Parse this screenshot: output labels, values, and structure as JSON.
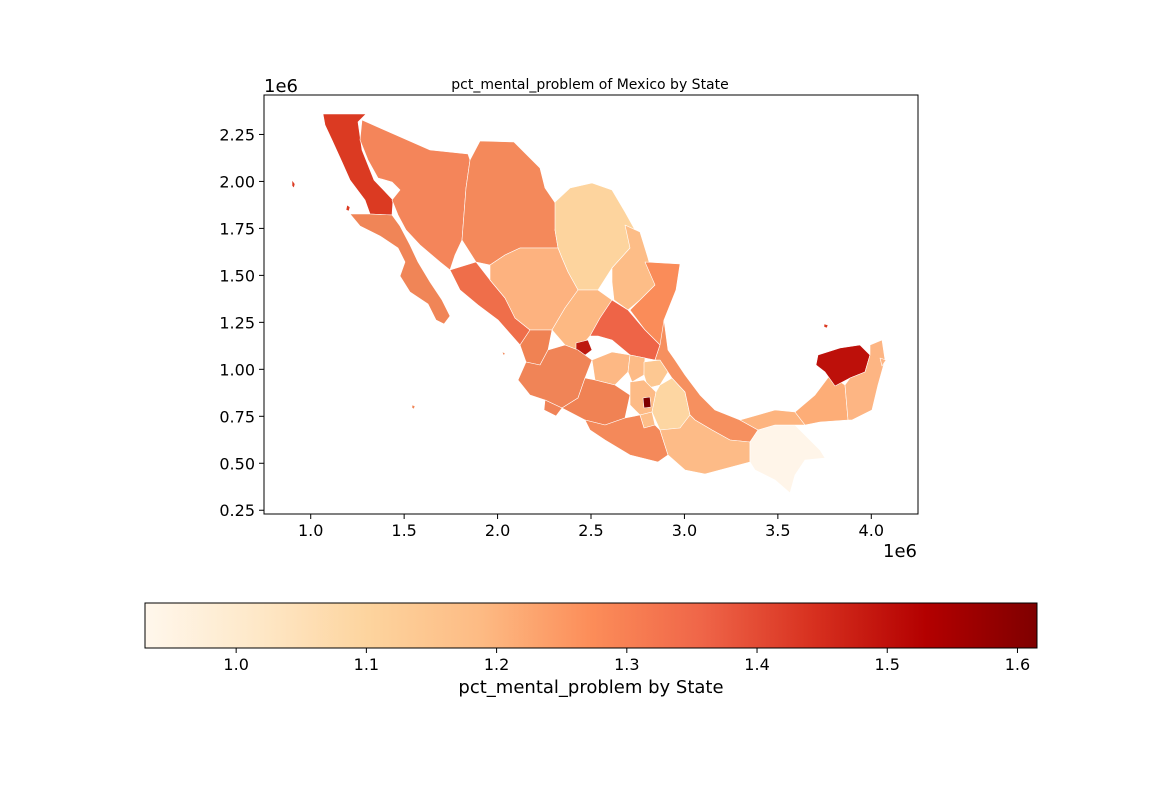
{
  "chart_data": {
    "type": "choropleth",
    "title": "pct_mental_problem of Mexico by State",
    "x_axis": {
      "ticks": [
        "1.0",
        "1.5",
        "2.0",
        "2.5",
        "3.0",
        "3.5",
        "4.0"
      ],
      "tick_values": [
        1000000,
        1500000,
        2000000,
        2500000,
        3000000,
        3500000,
        4000000
      ],
      "offset_label": "1e6",
      "range": [
        750000,
        4250000
      ]
    },
    "y_axis": {
      "ticks": [
        "0.25",
        "0.50",
        "0.75",
        "1.00",
        "1.25",
        "1.50",
        "1.75",
        "2.00",
        "2.25"
      ],
      "tick_values": [
        250000,
        500000,
        750000,
        1000000,
        1250000,
        1500000,
        1750000,
        2000000,
        2250000
      ],
      "offset_label": "1e6",
      "range": [
        230000,
        2460000
      ]
    },
    "colorbar": {
      "label": "pct_mental_problem by State",
      "colormap": "OrRd",
      "range": [
        0.93,
        1.615
      ],
      "ticks": [
        "1.0",
        "1.1",
        "1.2",
        "1.3",
        "1.4",
        "1.5",
        "1.6"
      ],
      "tick_values": [
        1.0,
        1.1,
        1.2,
        1.3,
        1.4,
        1.5,
        1.6
      ],
      "orientation": "horizontal"
    },
    "colors": {
      "oaxaca": "#f08758",
      "guerrero": "#f4895a",
      "michoacan": "#f08254",
      "jalisco": "#f08457",
      "colima": "#f08357",
      "nayarit": "#f08253",
      "guanajuato": "#fdb884",
      "queretaro": "#fdbb86",
      "hidalgo": "#fdc892",
      "veracruz": "#f6905f",
      "quintana_roo": "#fdb583"
    }
  }
}
